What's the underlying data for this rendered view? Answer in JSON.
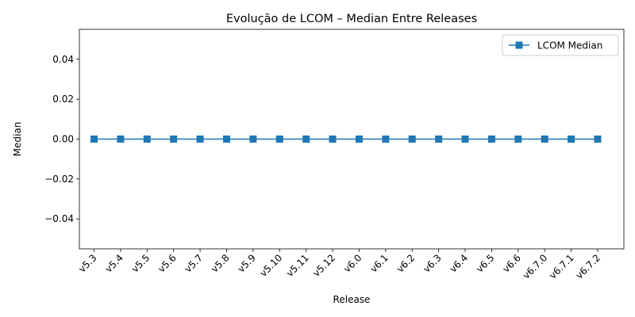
{
  "chart_data": {
    "type": "line",
    "title": "Evolução de LCOM – Median Entre Releases",
    "xlabel": "Release",
    "ylabel": "Median",
    "categories": [
      "v5.3",
      "v5.4",
      "v5.5",
      "v5.6",
      "v5.7",
      "v5.8",
      "v5.9",
      "v5.10",
      "v5.11",
      "v5.12",
      "v6.0",
      "v6.1",
      "v6.2",
      "v6.3",
      "v6.4",
      "v6.5",
      "v6.6",
      "v6.7.0",
      "v6.7.1",
      "v6.7.2"
    ],
    "series": [
      {
        "name": "LCOM Median",
        "values": [
          0,
          0,
          0,
          0,
          0,
          0,
          0,
          0,
          0,
          0,
          0,
          0,
          0,
          0,
          0,
          0,
          0,
          0,
          0,
          0
        ],
        "color": "#1f77b4",
        "marker": "square"
      }
    ],
    "ylim": [
      -0.055,
      0.055
    ],
    "yticks": [
      -0.04,
      -0.02,
      0.0,
      0.02,
      0.04
    ],
    "ytick_labels": [
      "−0.04",
      "−0.02",
      "0.00",
      "0.02",
      "0.04"
    ],
    "grid": false,
    "legend_position": "top-right"
  }
}
